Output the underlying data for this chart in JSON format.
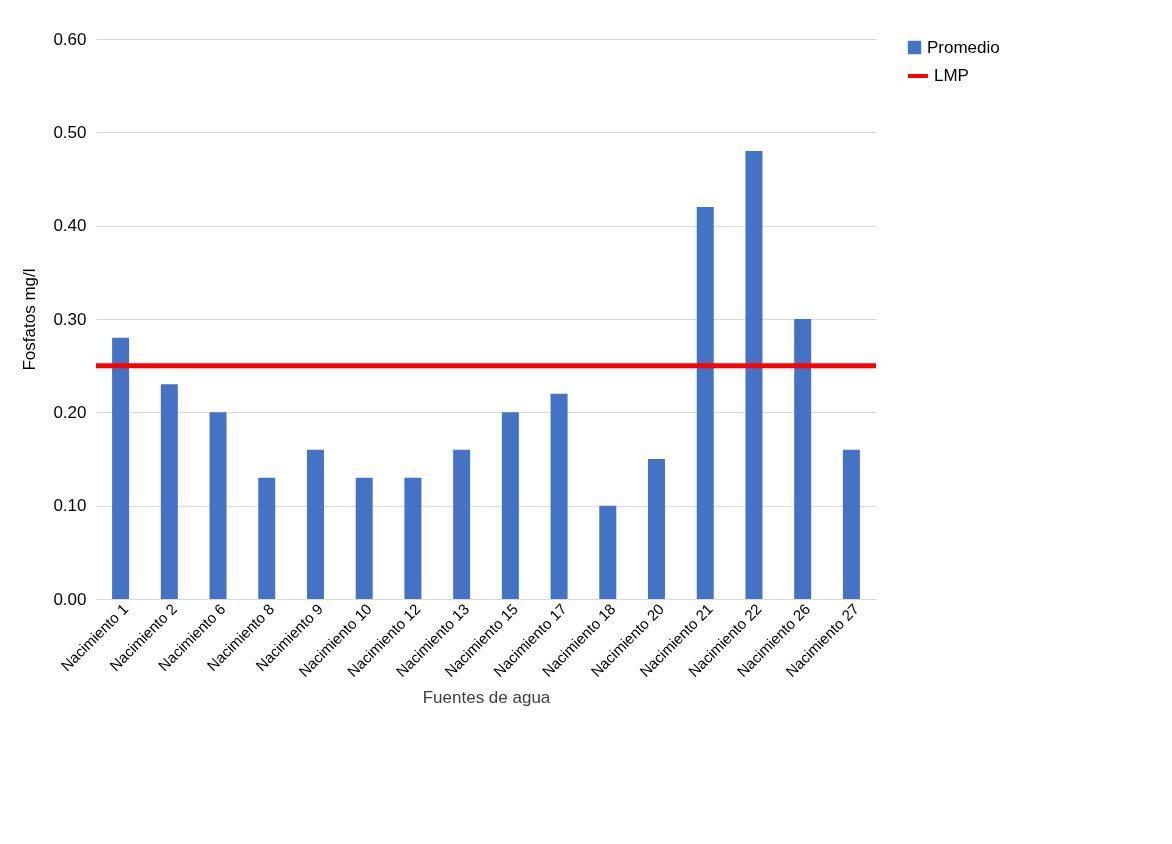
{
  "chart_data": {
    "type": "bar",
    "xlabel": "Fuentes de agua",
    "ylabel": "Fosfatos mg/l",
    "categories": [
      "Nacimiento 1",
      "Nacimiento 2",
      "Nacimiento 6",
      "Nacimiento 8",
      "Nacimiento 9",
      "Nacimiento 10",
      "Nacimiento 12",
      "Nacimiento 13",
      "Nacimiento 15",
      "Nacimiento 17",
      "Nacimiento 18",
      "Nacimiento 20",
      "Nacimiento 21",
      "Nacimiento 22",
      "Nacimiento 26",
      "Nacimiento 27"
    ],
    "series": [
      {
        "name": "Promedio",
        "color": "#4472c4",
        "values": [
          0.28,
          0.23,
          0.2,
          0.13,
          0.16,
          0.13,
          0.13,
          0.16,
          0.2,
          0.22,
          0.1,
          0.15,
          0.42,
          0.48,
          0.3,
          0.16
        ]
      }
    ],
    "ref_lines": [
      {
        "axis": "y",
        "value": 0.25,
        "label": "LMP",
        "color": "#ff0000"
      }
    ],
    "ylim": [
      0,
      0.6
    ],
    "yticks": [
      {
        "value": 0,
        "label": "0.00"
      },
      {
        "value": 0.1,
        "label": "0.10"
      },
      {
        "value": 0.2,
        "label": "0.20"
      },
      {
        "value": 0.3,
        "label": "0.30"
      },
      {
        "value": 0.4,
        "label": "0.40"
      },
      {
        "value": 0.5,
        "label": "0.50"
      },
      {
        "value": 0.6,
        "label": "0.60"
      }
    ],
    "grid": "y",
    "legend": "right"
  }
}
